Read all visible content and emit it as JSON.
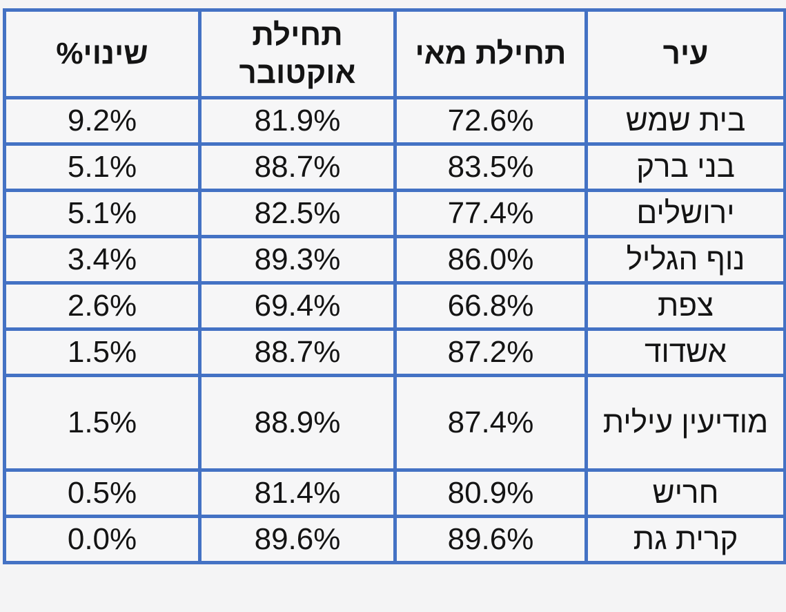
{
  "colors": {
    "table_border": "#4472C4",
    "background": "#F4F4F5",
    "cell_background": "#F6F6F7",
    "text": "#141414"
  },
  "chart_data": {
    "type": "table",
    "direction": "rtl",
    "columns": [
      "עיר",
      "תחילת מאי",
      "תחילת אוקטובר",
      "שינוי%"
    ],
    "columns_meaning": [
      "city",
      "beginning_of_may",
      "beginning_of_october",
      "percent_change"
    ],
    "rows": [
      [
        "בית שמש",
        "72.6%",
        "81.9%",
        "9.2%"
      ],
      [
        "בני ברק",
        "83.5%",
        "88.7%",
        "5.1%"
      ],
      [
        "ירושלים",
        "77.4%",
        "82.5%",
        "5.1%"
      ],
      [
        "נוף הגליל",
        "86.0%",
        "89.3%",
        "3.4%"
      ],
      [
        "צפת",
        "66.8%",
        "69.4%",
        "2.6%"
      ],
      [
        "אשדוד",
        "87.2%",
        "88.7%",
        "1.5%"
      ],
      [
        "מודיעין עילית",
        "87.4%",
        "88.9%",
        "1.5%"
      ],
      [
        "חריש",
        "80.9%",
        "81.4%",
        "0.5%"
      ],
      [
        "קרית גת",
        "89.6%",
        "89.6%",
        "0.0%"
      ]
    ],
    "numeric_rows": [
      {
        "city": "בית שמש",
        "may": 72.6,
        "october": 81.9,
        "change": 9.2
      },
      {
        "city": "בני ברק",
        "may": 83.5,
        "october": 88.7,
        "change": 5.1
      },
      {
        "city": "ירושלים",
        "may": 77.4,
        "october": 82.5,
        "change": 5.1
      },
      {
        "city": "נוף הגליל",
        "may": 86.0,
        "october": 89.3,
        "change": 3.4
      },
      {
        "city": "צפת",
        "may": 66.8,
        "october": 69.4,
        "change": 2.6
      },
      {
        "city": "אשדוד",
        "may": 87.2,
        "october": 88.7,
        "change": 1.5
      },
      {
        "city": "מודיעין עילית",
        "may": 87.4,
        "october": 88.9,
        "change": 1.5
      },
      {
        "city": "חריש",
        "may": 80.9,
        "october": 81.4,
        "change": 0.5
      },
      {
        "city": "קרית גת",
        "may": 89.6,
        "october": 89.6,
        "change": 0.0
      }
    ]
  }
}
